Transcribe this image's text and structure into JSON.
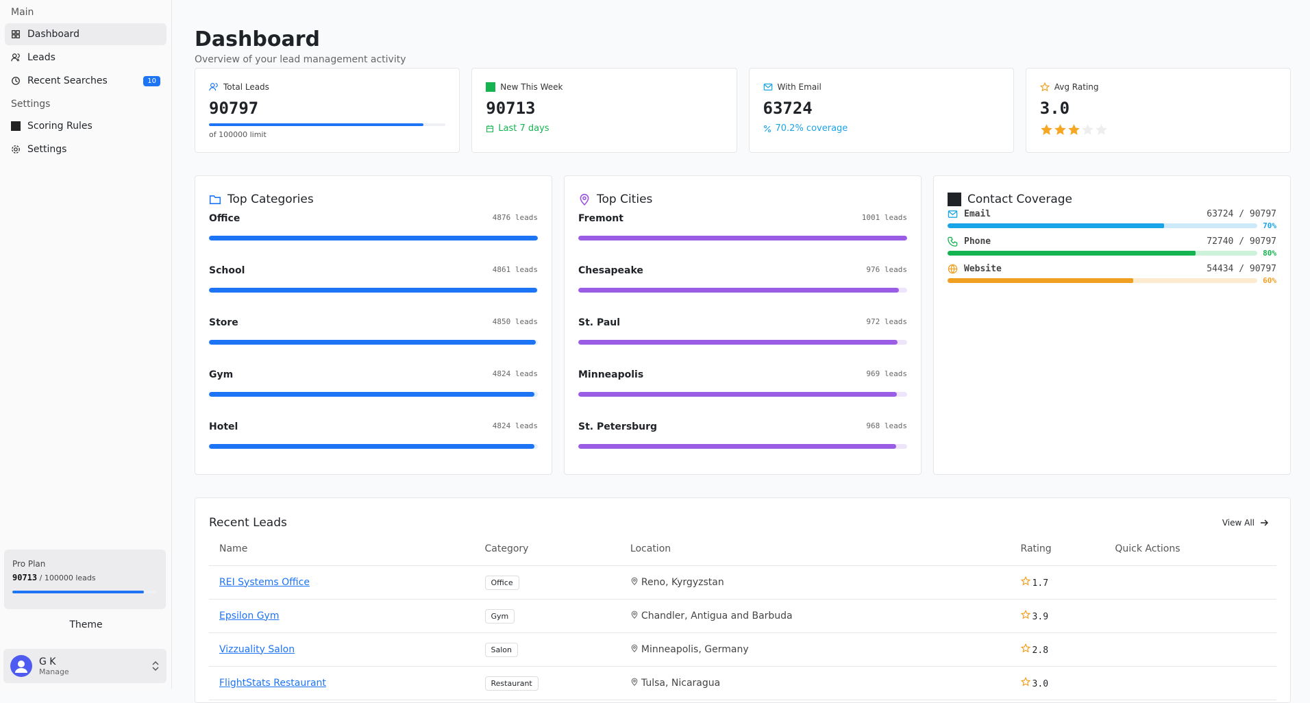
{
  "sidebar": {
    "sections": [
      {
        "title": "Main",
        "items": [
          {
            "label": "Dashboard"
          },
          {
            "label": "Leads"
          },
          {
            "label": "Recent Searches",
            "badge": "10"
          }
        ]
      },
      {
        "title": "Settings",
        "items": [
          {
            "label": "Scoring Rules"
          },
          {
            "label": "Settings"
          }
        ]
      }
    ],
    "plan": {
      "title": "Pro Plan",
      "used": 90713,
      "limit": 100000,
      "limit_label": "/ 100000 leads"
    },
    "theme_label": "Theme",
    "user": {
      "name": "G K",
      "action": "Manage"
    }
  },
  "header": {
    "title": "Dashboard",
    "subtitle": "Overview of your lead management activity"
  },
  "stats": [
    {
      "label": "Total Leads",
      "value": 90797,
      "limit": 100000,
      "note": "of 100000 limit"
    },
    {
      "label": "New This Week",
      "value": 90713,
      "note": "Last 7 days"
    },
    {
      "label": "With Email",
      "value": 63724,
      "note": "70.2% coverage"
    },
    {
      "label": "Avg Rating",
      "value": 3,
      "value_label": "3.0"
    }
  ],
  "top_categories": {
    "title": "Top Categories",
    "items": [
      {
        "name": "Office",
        "count": 4876,
        "count_label": "4876 leads"
      },
      {
        "name": "School",
        "count": 4861,
        "count_label": "4861 leads"
      },
      {
        "name": "Store",
        "count": 4850,
        "count_label": "4850 leads"
      },
      {
        "name": "Gym",
        "count": 4824,
        "count_label": "4824 leads"
      },
      {
        "name": "Hotel",
        "count": 4824,
        "count_label": "4824 leads"
      }
    ]
  },
  "top_cities": {
    "title": "Top Cities",
    "items": [
      {
        "name": "Fremont",
        "count": 1001,
        "count_label": "1001 leads"
      },
      {
        "name": "Chesapeake",
        "count": 976,
        "count_label": "976 leads"
      },
      {
        "name": "St. Paul",
        "count": 972,
        "count_label": "972 leads"
      },
      {
        "name": "Minneapolis",
        "count": 969,
        "count_label": "969 leads"
      },
      {
        "name": "St. Petersburg",
        "count": 968,
        "count_label": "968 leads"
      }
    ]
  },
  "contact_coverage": {
    "title": "Contact Coverage",
    "items": [
      {
        "name": "Email",
        "count_label": "63724 / 90797",
        "percent": 70,
        "percent_label": "70%"
      },
      {
        "name": "Phone",
        "count_label": "72740 / 90797",
        "percent": 80,
        "percent_label": "80%"
      },
      {
        "name": "Website",
        "count_label": "54434 / 90797",
        "percent": 60,
        "percent_label": "60%"
      }
    ]
  },
  "recent_leads": {
    "title": "Recent Leads",
    "action": "View All",
    "columns": [
      "Name",
      "Category",
      "Location",
      "Rating",
      "Quick Actions"
    ],
    "rows": [
      [
        "REI Systems Office",
        "Office",
        "Reno, Kyrgyzstan",
        "1.7"
      ],
      [
        "Epsilon Gym",
        "Gym",
        "Chandler, Antigua and Barbuda",
        "3.9"
      ],
      [
        "Vizzuality Salon",
        "Salon",
        "Minneapolis, Germany",
        "2.8"
      ],
      [
        "FlightStats Restaurant",
        "Restaurant",
        "Tulsa, Nicaragua",
        "3.0"
      ]
    ]
  }
}
